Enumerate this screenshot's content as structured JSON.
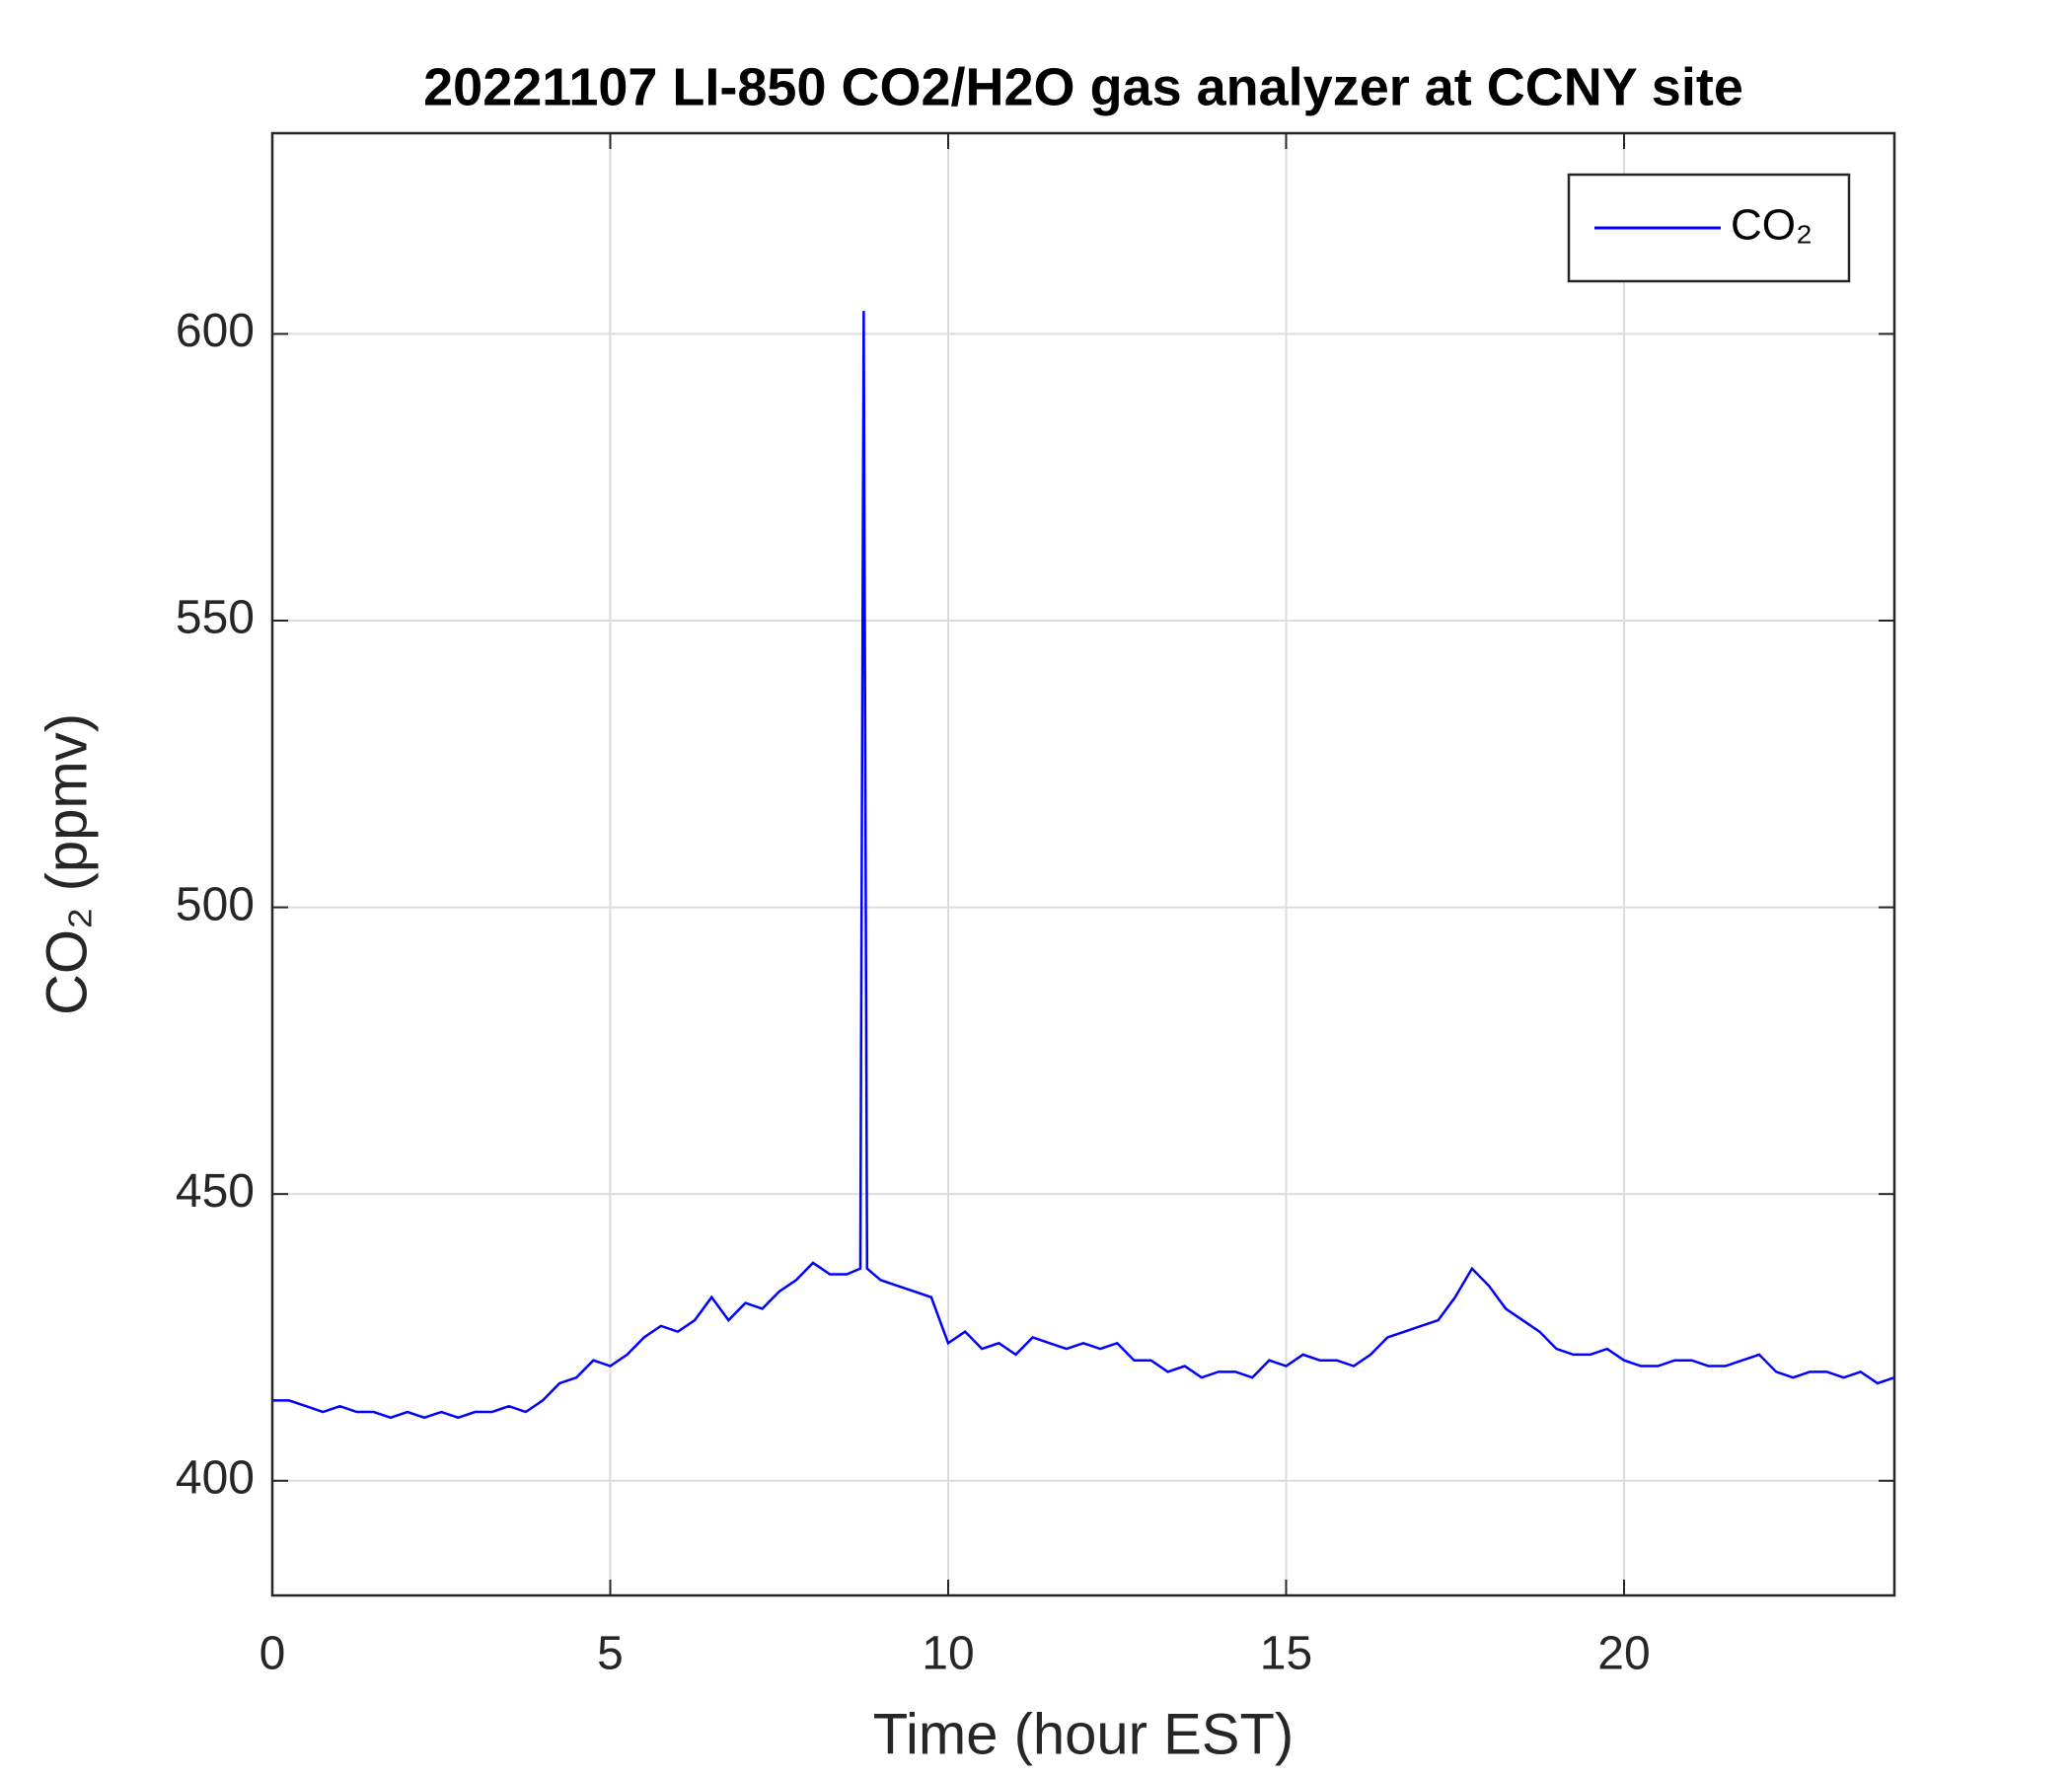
{
  "chart_data": {
    "type": "line",
    "title": "20221107 LI-850 CO2/H2O gas analyzer at CCNY site",
    "x_label": "Time (hour EST)",
    "y_label": "CO₂ (ppmv)",
    "x": [
      0,
      0.25,
      0.5,
      0.75,
      1,
      1.25,
      1.5,
      1.75,
      2,
      2.25,
      2.5,
      2.75,
      3,
      3.25,
      3.5,
      3.75,
      4,
      4.25,
      4.5,
      4.75,
      5,
      5.25,
      5.5,
      5.75,
      6,
      6.25,
      6.5,
      6.75,
      7,
      7.25,
      7.5,
      7.75,
      8,
      8.25,
      8.5,
      8.7,
      8.75,
      8.8,
      9,
      9.25,
      9.5,
      9.75,
      10,
      10.25,
      10.5,
      10.75,
      11,
      11.25,
      11.5,
      11.75,
      12,
      12.25,
      12.5,
      12.75,
      13,
      13.25,
      13.5,
      13.75,
      14,
      14.25,
      14.5,
      14.75,
      15,
      15.25,
      15.5,
      15.75,
      16,
      16.25,
      16.5,
      16.75,
      17,
      17.25,
      17.5,
      17.75,
      18,
      18.25,
      18.5,
      18.75,
      19,
      19.25,
      19.5,
      19.75,
      20,
      20.25,
      20.5,
      20.75,
      21,
      21.25,
      21.5,
      21.75,
      22,
      22.25,
      22.5,
      22.75,
      23,
      23.25,
      23.5,
      23.75,
      24
    ],
    "series": [
      {
        "name": "CO₂",
        "color": "#0000ff",
        "values": [
          414,
          414,
          413,
          412,
          413,
          412,
          412,
          411,
          412,
          411,
          412,
          411,
          412,
          412,
          413,
          412,
          414,
          417,
          418,
          421,
          420,
          422,
          425,
          427,
          426,
          428,
          432,
          428,
          431,
          430,
          433,
          435,
          438,
          436,
          436,
          437,
          604,
          437,
          435,
          434,
          433,
          432,
          424,
          426,
          423,
          424,
          422,
          425,
          424,
          423,
          424,
          423,
          424,
          421,
          421,
          419,
          420,
          418,
          419,
          419,
          418,
          421,
          420,
          422,
          421,
          421,
          420,
          422,
          425,
          426,
          427,
          428,
          432,
          437,
          434,
          430,
          428,
          426,
          423,
          422,
          422,
          423,
          421,
          420,
          420,
          421,
          421,
          420,
          420,
          421,
          422,
          419,
          418,
          419,
          419,
          418,
          419,
          417,
          418
        ]
      }
    ],
    "xlim": [
      0,
      24
    ],
    "xticks": [
      0,
      5,
      10,
      15,
      20
    ],
    "ylim": [
      380,
      635
    ],
    "yticks": [
      400,
      450,
      500,
      550,
      600
    ],
    "grid": true,
    "legend": "upper right"
  }
}
